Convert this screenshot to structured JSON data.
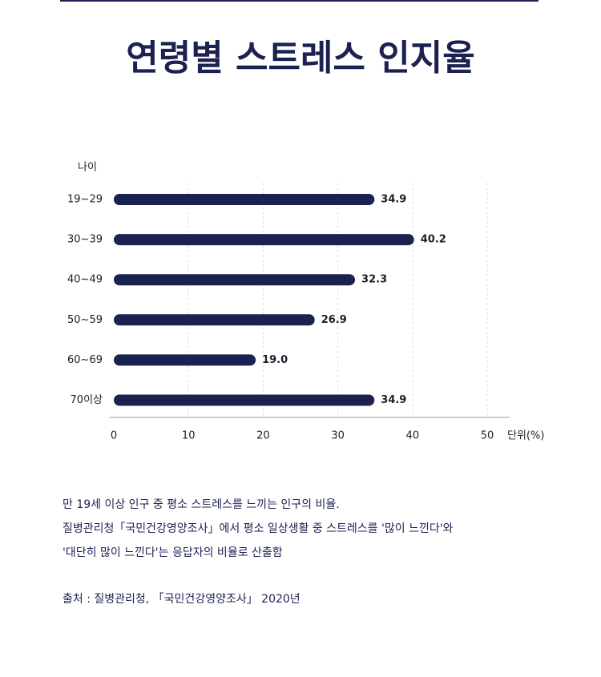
{
  "chart_data": {
    "type": "bar",
    "orientation": "horizontal",
    "title": "연령별 스트레스 인지율",
    "y_axis_label": "나이",
    "x_axis_label": "단위(%)",
    "categories": [
      "19~29",
      "30~39",
      "40~49",
      "50~59",
      "60~69",
      "70이상"
    ],
    "values": [
      34.9,
      40.2,
      32.3,
      26.9,
      19.0,
      34.9
    ],
    "value_labels": [
      "34.9",
      "40.2",
      "32.3",
      "26.9",
      "19.0",
      "34.9"
    ],
    "color": "#1b2150",
    "xlim": [
      0,
      53
    ],
    "xticks": [
      0,
      10,
      20,
      30,
      40,
      50
    ],
    "grid": true
  },
  "notes": [
    "만 19세 이상 인구 중 평소 스트레스를 느끼는 인구의 비율.",
    "질병관리청「국민건강영양조사」에서 평소 일상생활 중 스트레스를 '많이 느낀다'와",
    "'대단히 많이 느낀다'는 응답자의 비율로 산출함"
  ],
  "source": "출처 : 질병관리청, 「국민건강영양조사」 2020년"
}
